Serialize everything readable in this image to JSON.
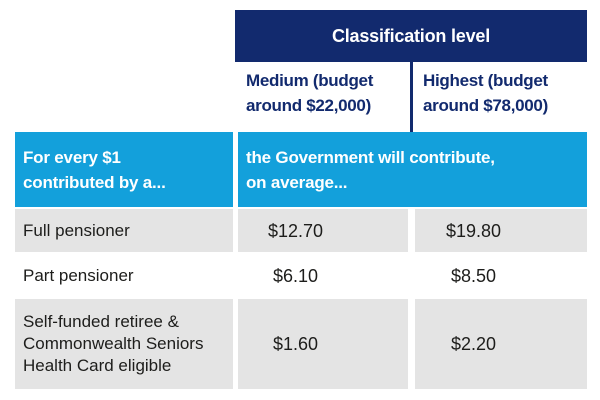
{
  "colors": {
    "navy": "#122a6e",
    "blue": "#13a0db",
    "row_gray": "#e4e4e4",
    "text_dark": "#1d1d1b",
    "white": "#ffffff"
  },
  "table": {
    "classification_header": "Classification level",
    "columns": [
      {
        "line1": "Medium (budget",
        "line2": "around $22,000)"
      },
      {
        "line1": "Highest (budget",
        "line2": "around $78,000)"
      }
    ],
    "subheader": {
      "left_line1": "For every $1",
      "left_line2": "contributed by a...",
      "right_line1": "the Government will contribute,",
      "right_line2": "on average..."
    },
    "rows": [
      {
        "label": "Full pensioner",
        "medium": "$12.70",
        "highest": "$19.80"
      },
      {
        "label": "Part pensioner",
        "medium": "$6.10",
        "highest": "$8.50"
      },
      {
        "label": "Self-funded retiree & Commonwealth Seniors Health Card eligible",
        "medium": "$1.60",
        "highest": "$2.20"
      }
    ]
  },
  "chart_data": {
    "type": "table",
    "title": "Classification level",
    "column_headers": [
      "For every $1 contributed by a...",
      "Medium (budget around $22,000)",
      "Highest (budget around $78,000)"
    ],
    "note": "the Government will contribute, on average...",
    "rows": [
      {
        "category": "Full pensioner",
        "medium": 12.7,
        "highest": 19.8
      },
      {
        "category": "Part pensioner",
        "medium": 6.1,
        "highest": 8.5
      },
      {
        "category": "Self-funded retiree & Commonwealth Seniors Health Card eligible",
        "medium": 1.6,
        "highest": 2.2
      }
    ]
  }
}
